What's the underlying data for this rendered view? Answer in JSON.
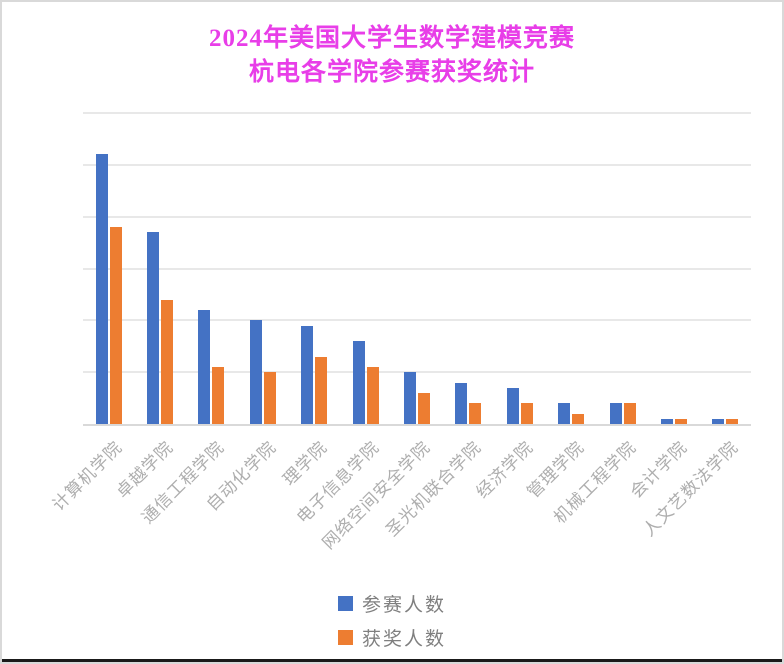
{
  "title": {
    "line1": "2024年美国大学生数学建模竞赛",
    "line2": "杭电各学院参赛获奖统计"
  },
  "colors": {
    "title_color": "#e83ee8",
    "series1": "#4472C4",
    "series2": "#ED7D31",
    "gridline": "#e8e8e8",
    "axis_line": "#d9d9d9",
    "axis_label": "#aeaeae",
    "legend_text": "#7f7f7f",
    "border": "#d9d9d9",
    "bottom_edge": "#1a1a1a"
  },
  "chart_data": {
    "type": "bar",
    "title": "2024年美国大学生数学建模竞赛 杭电各学院参赛获奖统计",
    "categories": [
      "计算机学院",
      "卓越学院",
      "通信工程学院",
      "自动化学院",
      "理学院",
      "电子信息学院",
      "网络空间安全学院",
      "圣光机联合学院",
      "经济学院",
      "管理学院",
      "机械工程学院",
      "会计学院",
      "人文艺数法学院"
    ],
    "series": [
      {
        "name": "参赛人数",
        "color": "#4472C4",
        "values": [
          104,
          74,
          44,
          40,
          38,
          32,
          20,
          16,
          14,
          8,
          8,
          2,
          2
        ]
      },
      {
        "name": "获奖人数",
        "color": "#ED7D31",
        "values": [
          76,
          48,
          22,
          20,
          26,
          22,
          12,
          8,
          8,
          4,
          8,
          2,
          2
        ]
      }
    ],
    "xlabel": "",
    "ylabel": "",
    "ylim": [
      0,
      120
    ],
    "y_step": 20,
    "grid": true,
    "y_axis_labels_visible": false,
    "x_label_rotation_deg": 45,
    "legend_position": "bottom-center"
  }
}
